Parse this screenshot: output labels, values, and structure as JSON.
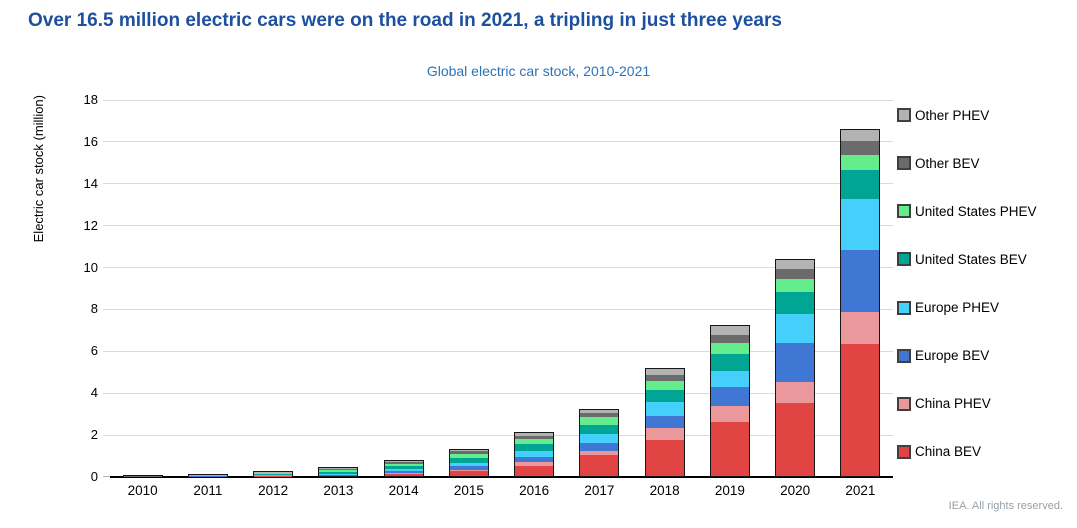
{
  "header": {
    "title": "Over 16.5 million electric cars were on the road in 2021, a tripling in just three years"
  },
  "footer": {
    "credit": "IEA. All rights reserved."
  },
  "colors": {
    "title": "#1E50A0",
    "subtitle": "#2D73B4",
    "gridline": "#dadada",
    "segment_border": "#161616",
    "axis": "#000000"
  },
  "chart_data": {
    "type": "bar",
    "stacked": true,
    "title": "Global electric car stock, 2010-2021",
    "xlabel": "",
    "ylabel": "Electric car stock (million)",
    "ylim": [
      0,
      18
    ],
    "ytick_step": 2,
    "grid": true,
    "legend_position": "right",
    "legend_order_note": "legend shown top-to-bottom is reverse of stacking order (bottom of stack = China BEV)",
    "categories": [
      "2010",
      "2011",
      "2012",
      "2013",
      "2014",
      "2015",
      "2016",
      "2017",
      "2018",
      "2019",
      "2020",
      "2021"
    ],
    "series": [
      {
        "name": "China BEV",
        "color": "#E04543",
        "values": [
          0.005,
          0.01,
          0.016,
          0.03,
          0.1,
          0.23,
          0.5,
          0.98,
          1.72,
          2.58,
          3.5,
          6.3
        ]
      },
      {
        "name": "China PHEV",
        "color": "#EA989B",
        "values": [
          0.001,
          0.001,
          0.003,
          0.003,
          0.03,
          0.07,
          0.16,
          0.22,
          0.56,
          0.78,
          1.0,
          1.55
        ]
      },
      {
        "name": "Europe BEV",
        "color": "#4076D4",
        "values": [
          0.002,
          0.01,
          0.03,
          0.055,
          0.12,
          0.19,
          0.27,
          0.37,
          0.6,
          0.88,
          1.85,
          2.95
        ]
      },
      {
        "name": "Europe PHEV",
        "color": "#45D0FB",
        "values": [
          0.001,
          0.002,
          0.012,
          0.025,
          0.08,
          0.14,
          0.26,
          0.42,
          0.66,
          0.78,
          1.38,
          2.45
        ]
      },
      {
        "name": "United States BEV",
        "color": "#00A693",
        "values": [
          0.002,
          0.01,
          0.028,
          0.09,
          0.13,
          0.21,
          0.32,
          0.44,
          0.56,
          0.8,
          1.06,
          1.35
        ]
      },
      {
        "name": "United States PHEV",
        "color": "#64ED8D",
        "values": [
          0.001,
          0.008,
          0.04,
          0.09,
          0.12,
          0.19,
          0.26,
          0.4,
          0.42,
          0.52,
          0.6,
          0.75
        ]
      },
      {
        "name": "Other BEV",
        "color": "#6B6B6B",
        "values": [
          0.006,
          0.025,
          0.045,
          0.09,
          0.11,
          0.15,
          0.16,
          0.2,
          0.3,
          0.38,
          0.5,
          0.65
        ]
      },
      {
        "name": "Other PHEV",
        "color": "#B3B3B3",
        "values": [
          0.002,
          0.004,
          0.006,
          0.017,
          0.04,
          0.07,
          0.1,
          0.13,
          0.28,
          0.42,
          0.44,
          0.5
        ]
      }
    ],
    "totals": [
      0.02,
      0.07,
      0.18,
      0.4,
      0.73,
      1.25,
      2.03,
      3.16,
      5.1,
      7.14,
      10.33,
      16.5
    ]
  }
}
